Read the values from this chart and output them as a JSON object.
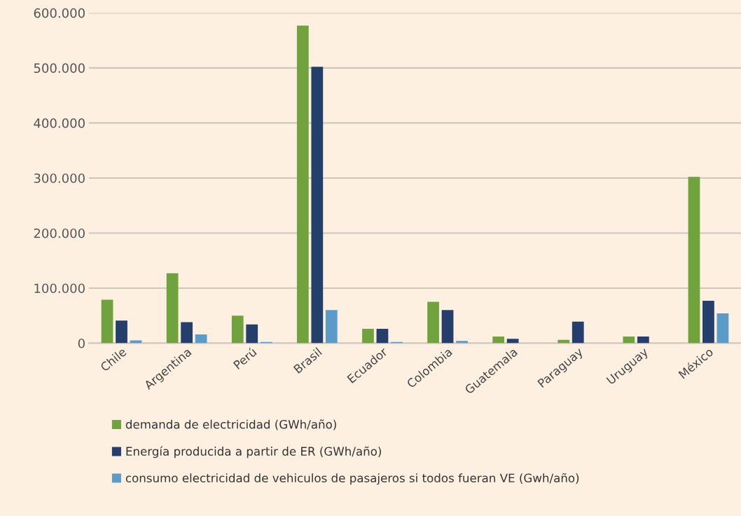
{
  "chart_data": {
    "type": "bar",
    "categories": [
      "Chile",
      "Argentina",
      "Perú",
      "Brasil",
      "Ecuador",
      "Colombia",
      "Guatemala",
      "Paraguay",
      "Uruguay",
      "México"
    ],
    "series": [
      {
        "name": "demanda de electricidad (GWh/año)",
        "color": "#70a23e",
        "values": [
          79000,
          127000,
          50000,
          577000,
          26000,
          75000,
          12000,
          6000,
          12000,
          302000
        ]
      },
      {
        "name": "Energía producida a partir de ER (GWh/año)",
        "color": "#243f6b",
        "values": [
          41000,
          38000,
          34000,
          502000,
          26000,
          60000,
          8000,
          39000,
          12000,
          77000
        ]
      },
      {
        "name": "consumo electricidad de vehiculos de pasajeros si todos fueran VE (Gwh/año)",
        "color": "#5b9bc8",
        "values": [
          5000,
          16000,
          2000,
          60000,
          2000,
          4000,
          null,
          null,
          null,
          54000
        ]
      }
    ],
    "ylim": [
      0,
      600000
    ],
    "yticks": [
      {
        "value": 0,
        "label": "0"
      },
      {
        "value": 100000,
        "label": "100.000"
      },
      {
        "value": 200000,
        "label": "200.000"
      },
      {
        "value": 300000,
        "label": "300.000"
      },
      {
        "value": 400000,
        "label": "400.000"
      },
      {
        "value": 500000,
        "label": "500.000"
      },
      {
        "value": 600000,
        "label": "600.000"
      }
    ],
    "grid": "y",
    "legend": "bottom"
  }
}
